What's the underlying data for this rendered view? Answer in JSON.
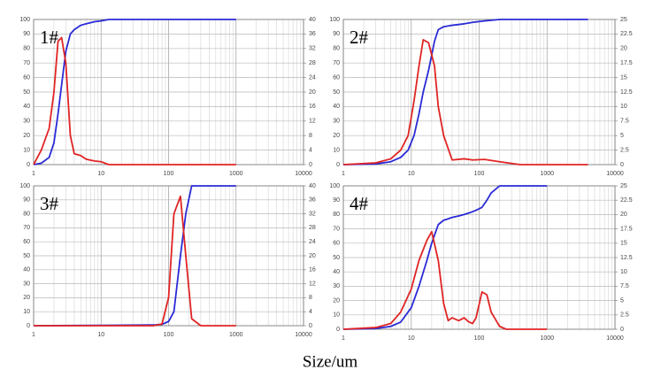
{
  "xlabel": "Size/um",
  "chart_data": [
    {
      "type": "line",
      "annotation": "1#",
      "xscale": "log",
      "grid": true,
      "x": [
        1,
        1.3,
        1.7,
        2,
        2.3,
        2.6,
        3,
        3.5,
        4,
        5,
        6,
        8,
        10,
        13,
        20,
        100,
        1000
      ],
      "xlim": [
        1,
        10000
      ],
      "xticks": [
        1,
        10,
        100,
        1000,
        10000
      ],
      "ylim": [
        0,
        100
      ],
      "yticks": [
        0,
        10,
        20,
        30,
        40,
        50,
        60,
        70,
        80,
        90,
        100
      ],
      "y2lim": [
        0,
        40
      ],
      "y2ticks": [
        0,
        4,
        8,
        12,
        16,
        20,
        24,
        28,
        32,
        36,
        40
      ],
      "series": [
        {
          "color": "#2a2ad6",
          "values": [
            0,
            1,
            5,
            15,
            35,
            55,
            78,
            90,
            93,
            96,
            97,
            98.5,
            99,
            100,
            100,
            100,
            100
          ]
        },
        {
          "color": "#e02424",
          "axis": "y2",
          "values": [
            0,
            4,
            10,
            20,
            34,
            35,
            28,
            8,
            3,
            2.5,
            1.5,
            1,
            0.8,
            0,
            0,
            0,
            0
          ]
        }
      ]
    },
    {
      "type": "line",
      "annotation": "2#",
      "xscale": "log",
      "grid": true,
      "x": [
        1,
        3,
        5,
        7,
        9,
        11,
        13,
        15,
        18,
        22,
        25,
        30,
        40,
        60,
        80,
        120,
        200,
        400,
        4000
      ],
      "xlim": [
        1,
        10000
      ],
      "xticks": [
        1,
        10,
        100,
        1000,
        10000
      ],
      "ylim": [
        0,
        100
      ],
      "yticks": [
        0,
        10,
        20,
        30,
        40,
        50,
        60,
        70,
        80,
        90,
        100
      ],
      "y2lim": [
        0,
        25
      ],
      "y2ticks": [
        0,
        2.5,
        5,
        7.5,
        10,
        12.5,
        15,
        17.5,
        20,
        22.5,
        25
      ],
      "series": [
        {
          "color": "#2a2ad6",
          "values": [
            0,
            0.5,
            2,
            5,
            10,
            20,
            35,
            50,
            65,
            85,
            93,
            95,
            96,
            97,
            98,
            99,
            100,
            100,
            100
          ]
        },
        {
          "color": "#e02424",
          "axis": "y2",
          "values": [
            0,
            0.3,
            1,
            2.5,
            5,
            11,
            17,
            21.5,
            21,
            17,
            10,
            5,
            0.8,
            1,
            0.8,
            0.9,
            0.5,
            0,
            0
          ]
        }
      ]
    },
    {
      "type": "line",
      "annotation": "3#",
      "xscale": "log",
      "grid": true,
      "x": [
        1,
        60,
        80,
        100,
        120,
        150,
        180,
        220,
        300,
        1000
      ],
      "xlim": [
        1,
        10000
      ],
      "xticks": [
        1,
        10,
        100,
        1000,
        10000
      ],
      "ylim": [
        0,
        100
      ],
      "yticks": [
        0,
        10,
        20,
        30,
        40,
        50,
        60,
        70,
        80,
        90,
        100
      ],
      "y2lim": [
        0,
        40
      ],
      "y2ticks": [
        0,
        4,
        8,
        12,
        16,
        20,
        24,
        28,
        32,
        36,
        40
      ],
      "series": [
        {
          "color": "#2a2ad6",
          "values": [
            0,
            0.5,
            1,
            3,
            10,
            50,
            80,
            100,
            100,
            100
          ]
        },
        {
          "color": "#e02424",
          "axis": "y2",
          "values": [
            0,
            0,
            0.5,
            8,
            32,
            37,
            20,
            2,
            0,
            0
          ]
        }
      ]
    },
    {
      "type": "line",
      "annotation": "4#",
      "xscale": "log",
      "grid": true,
      "x": [
        1,
        3,
        5,
        7,
        10,
        13,
        17,
        20,
        25,
        30,
        35,
        40,
        50,
        60,
        70,
        80,
        90,
        110,
        130,
        150,
        200,
        250,
        1000
      ],
      "xlim": [
        1,
        10000
      ],
      "xticks": [
        1,
        10,
        100,
        1000,
        10000
      ],
      "ylim": [
        0,
        100
      ],
      "yticks": [
        0,
        10,
        20,
        30,
        40,
        50,
        60,
        70,
        80,
        90,
        100
      ],
      "y2lim": [
        0,
        25
      ],
      "y2ticks": [
        0,
        2.5,
        5,
        7.5,
        10,
        12.5,
        15,
        17.5,
        20,
        22.5,
        25
      ],
      "series": [
        {
          "color": "#2a2ad6",
          "values": [
            0,
            0.5,
            2,
            5,
            15,
            30,
            48,
            60,
            73,
            76,
            77,
            78,
            79,
            80,
            81,
            82,
            83,
            85,
            90,
            95,
            100,
            100,
            100
          ]
        },
        {
          "color": "#e02424",
          "axis": "y2",
          "values": [
            0,
            0.3,
            1,
            3,
            7,
            12,
            15.5,
            17,
            12,
            4.5,
            1.5,
            2,
            1.5,
            2,
            1.3,
            1,
            2,
            6.5,
            6,
            3,
            0.5,
            0,
            0
          ]
        }
      ]
    }
  ]
}
